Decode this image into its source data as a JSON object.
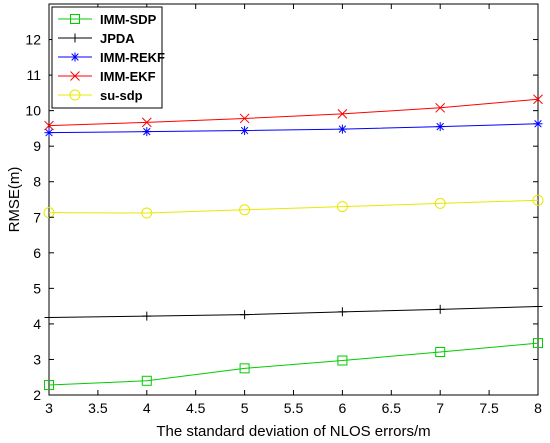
{
  "chart_data": {
    "type": "line",
    "title": "",
    "xlabel": "The standard deviation of NLOS errors/m",
    "ylabel": "RMSE(m)",
    "xlim": [
      3,
      8
    ],
    "ylim": [
      2,
      13
    ],
    "x_ticks": [
      "3",
      "3.5",
      "4",
      "4.5",
      "5",
      "5.5",
      "6",
      "6.5",
      "7",
      "7.5",
      "8"
    ],
    "y_ticks": [
      "2",
      "3",
      "4",
      "5",
      "6",
      "7",
      "8",
      "9",
      "10",
      "11",
      "12"
    ],
    "grid": false,
    "legend_position": "top-left",
    "x": [
      3,
      4,
      5,
      6,
      7,
      8
    ],
    "series": [
      {
        "name": "IMM-SDP",
        "color": "#00cc00",
        "marker": "square",
        "values": [
          2.28,
          2.4,
          2.75,
          2.97,
          3.21,
          3.46
        ]
      },
      {
        "name": "JPDA",
        "color": "#000000",
        "marker": "plus",
        "values": [
          4.18,
          4.22,
          4.26,
          4.34,
          4.41,
          4.49
        ]
      },
      {
        "name": "IMM-REKF",
        "color": "#0000ff",
        "marker": "asterisk",
        "values": [
          9.38,
          9.41,
          9.44,
          9.48,
          9.55,
          9.63
        ]
      },
      {
        "name": "IMM-EKF",
        "color": "#ff0000",
        "marker": "x",
        "values": [
          9.58,
          9.67,
          9.78,
          9.91,
          10.08,
          10.32
        ]
      },
      {
        "name": "su-sdp",
        "color": "#e8e800",
        "marker": "circle",
        "values": [
          7.13,
          7.12,
          7.21,
          7.3,
          7.39,
          7.48
        ]
      }
    ]
  }
}
